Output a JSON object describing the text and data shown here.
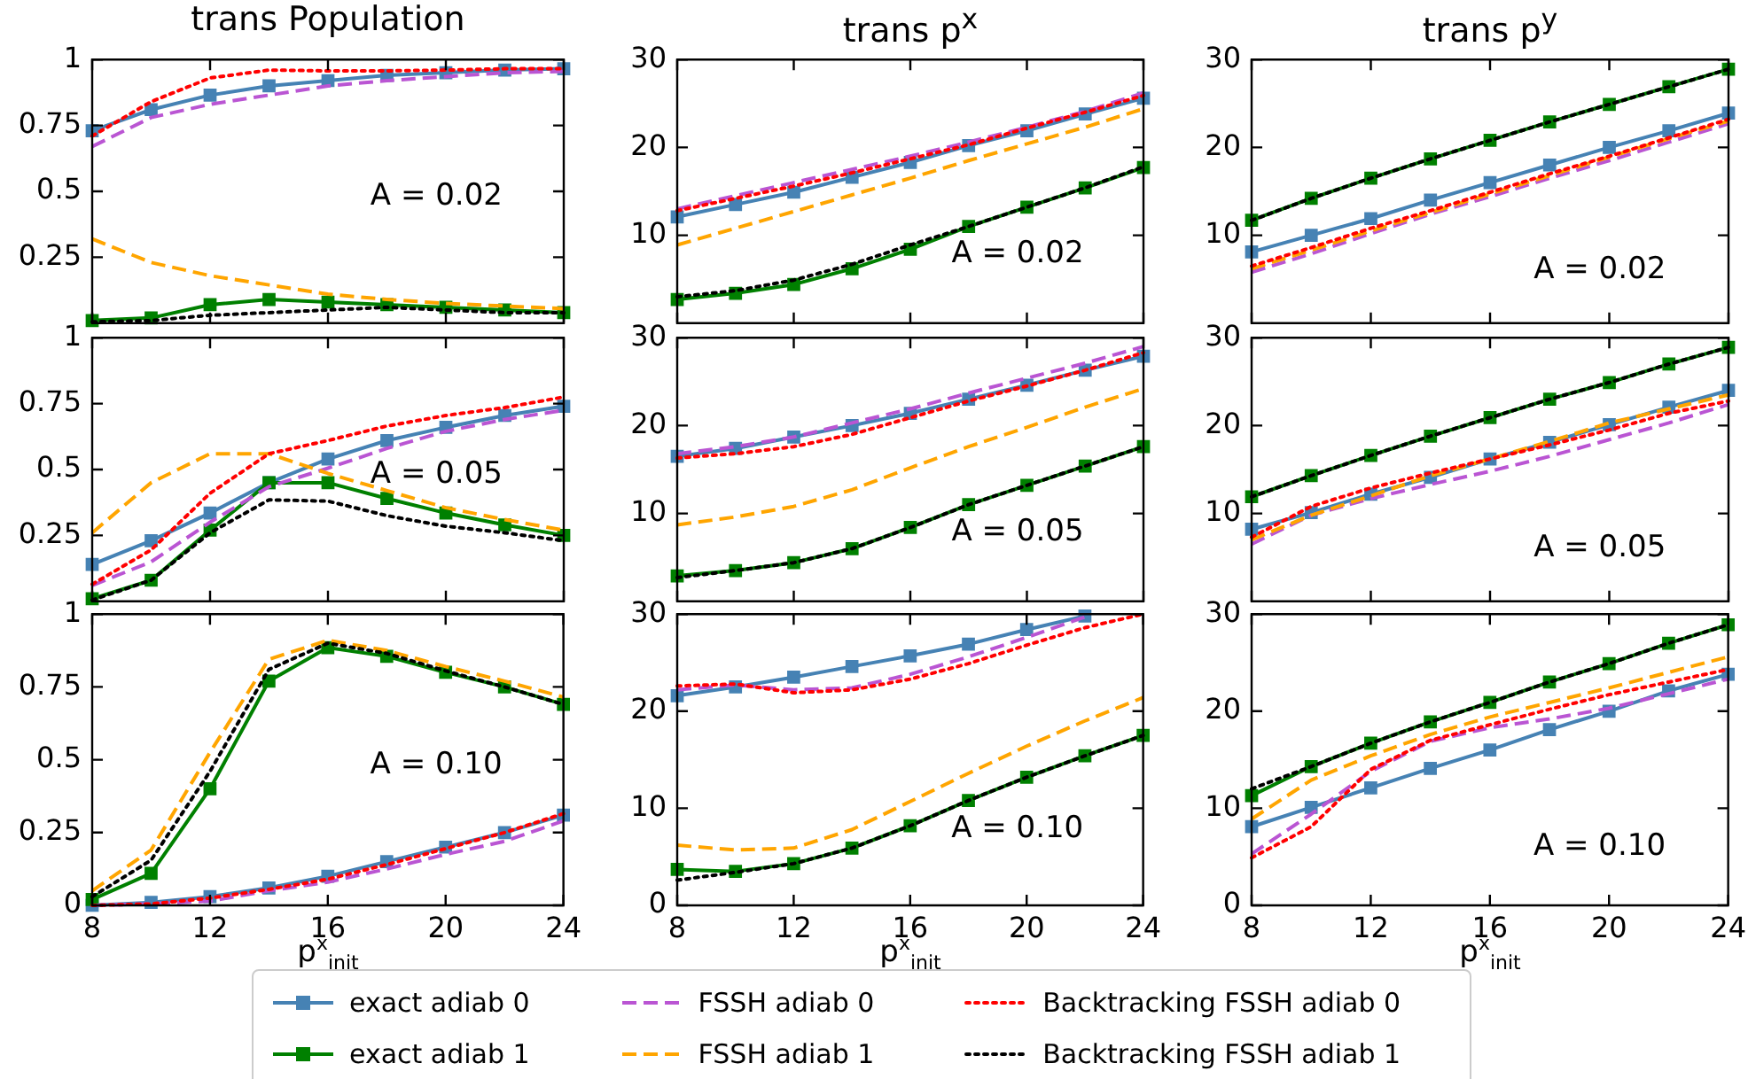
{
  "chart_data": [
    {
      "type": "line",
      "title": "trans Population",
      "x": [
        8,
        10,
        12,
        14,
        16,
        18,
        20,
        22,
        24
      ],
      "xlim": [
        8,
        24
      ],
      "xticks": [
        8,
        12,
        16,
        20,
        24
      ],
      "ylim": [
        0,
        1
      ],
      "yticks": [
        0.25,
        0.5,
        0.75,
        1
      ],
      "tick_labels": "y",
      "annotations": [
        "A = 0.02"
      ],
      "series": [
        {
          "color": "#4682b4",
          "marker": "square",
          "line_style": "solid",
          "values": [
            0.73,
            0.81,
            0.865,
            0.9,
            0.92,
            0.94,
            0.95,
            0.96,
            0.965
          ]
        },
        {
          "color": "#008000",
          "marker": "square",
          "line_style": "solid",
          "values": [
            0.01,
            0.02,
            0.07,
            0.09,
            0.08,
            0.07,
            0.06,
            0.05,
            0.04
          ]
        },
        {
          "color": "#ba55d3",
          "marker": "none",
          "line_style": "dashed",
          "values": [
            0.67,
            0.78,
            0.83,
            0.865,
            0.9,
            0.92,
            0.935,
            0.95,
            0.955
          ]
        },
        {
          "color": "#ffa500",
          "marker": "none",
          "line_style": "dashed",
          "values": [
            0.32,
            0.23,
            0.18,
            0.145,
            0.11,
            0.09,
            0.075,
            0.065,
            0.055
          ]
        },
        {
          "color": "#ff0000",
          "marker": "none",
          "line_style": "dotted",
          "values": [
            0.71,
            0.84,
            0.93,
            0.96,
            0.957,
            0.957,
            0.96,
            0.965,
            0.965
          ]
        },
        {
          "color": "#000000",
          "marker": "none",
          "line_style": "dotted",
          "values": [
            0.005,
            0.01,
            0.03,
            0.04,
            0.05,
            0.06,
            0.05,
            0.04,
            0.04
          ]
        }
      ]
    },
    {
      "type": "line",
      "title": "trans p$^{x}$",
      "x": [
        8,
        10,
        12,
        14,
        16,
        18,
        20,
        22,
        24
      ],
      "xlim": [
        8,
        24
      ],
      "xticks": [
        8,
        12,
        16,
        20,
        24
      ],
      "ylim": [
        0,
        30
      ],
      "yticks": [
        10,
        20,
        30
      ],
      "tick_labels": "y",
      "annotations": [
        "A = 0.02"
      ],
      "series": [
        {
          "color": "#4682b4",
          "marker": "square",
          "line_style": "solid",
          "values": [
            12.1,
            13.5,
            14.9,
            16.6,
            18.3,
            20.2,
            21.9,
            23.8,
            25.6
          ]
        },
        {
          "color": "#008000",
          "marker": "square",
          "line_style": "solid",
          "values": [
            2.7,
            3.4,
            4.4,
            6.2,
            8.4,
            11.0,
            13.2,
            15.4,
            17.7
          ]
        },
        {
          "color": "#ba55d3",
          "marker": "none",
          "line_style": "dashed",
          "values": [
            13.0,
            14.5,
            16.0,
            17.5,
            19.0,
            20.6,
            22.3,
            24.1,
            26.2
          ]
        },
        {
          "color": "#ffa500",
          "marker": "none",
          "line_style": "dashed",
          "values": [
            8.9,
            10.8,
            12.7,
            14.6,
            16.5,
            18.5,
            20.4,
            22.3,
            24.4
          ]
        },
        {
          "color": "#ff0000",
          "marker": "none",
          "line_style": "dotted",
          "values": [
            12.8,
            14.2,
            15.6,
            17.1,
            18.7,
            20.3,
            22.2,
            24.0,
            25.9
          ]
        },
        {
          "color": "#000000",
          "marker": "none",
          "line_style": "dotted",
          "values": [
            3.0,
            3.7,
            4.9,
            6.7,
            8.9,
            11.0,
            13.2,
            15.4,
            17.8
          ]
        }
      ]
    },
    {
      "type": "line",
      "title": "trans p$^{y}$",
      "x": [
        8,
        10,
        12,
        14,
        16,
        18,
        20,
        22,
        24
      ],
      "xlim": [
        8,
        24
      ],
      "xticks": [
        8,
        12,
        16,
        20,
        24
      ],
      "ylim": [
        0,
        30
      ],
      "yticks": [
        10,
        20,
        30
      ],
      "tick_labels": "y",
      "annotations": [
        "A = 0.02"
      ],
      "series": [
        {
          "color": "#4682b4",
          "marker": "square",
          "line_style": "solid",
          "values": [
            8.1,
            10.0,
            11.9,
            14.0,
            16.0,
            18.0,
            20.0,
            21.9,
            23.9
          ]
        },
        {
          "color": "#008000",
          "marker": "square",
          "line_style": "solid",
          "values": [
            11.7,
            14.2,
            16.5,
            18.7,
            20.8,
            22.9,
            24.9,
            26.9,
            28.9
          ]
        },
        {
          "color": "#ba55d3",
          "marker": "none",
          "line_style": "dashed",
          "values": [
            5.8,
            7.9,
            10.2,
            12.4,
            14.4,
            16.5,
            18.5,
            20.6,
            22.7
          ]
        },
        {
          "color": "#ffa500",
          "marker": "none",
          "line_style": "dashed",
          "values": [
            6.2,
            8.3,
            10.5,
            12.6,
            14.7,
            16.8,
            18.9,
            21.0,
            23.0
          ]
        },
        {
          "color": "#ff0000",
          "marker": "none",
          "line_style": "dotted",
          "values": [
            6.5,
            8.6,
            10.8,
            12.8,
            14.9,
            17.0,
            19.0,
            21.1,
            23.2
          ]
        },
        {
          "color": "#000000",
          "marker": "none",
          "line_style": "dotted",
          "values": [
            11.7,
            14.2,
            16.5,
            18.7,
            20.8,
            22.9,
            24.9,
            26.9,
            28.9
          ]
        }
      ]
    },
    {
      "type": "line",
      "x": [
        8,
        10,
        12,
        14,
        16,
        18,
        20,
        22,
        24
      ],
      "xlim": [
        8,
        24
      ],
      "xticks": [
        8,
        12,
        16,
        20,
        24
      ],
      "ylim": [
        0,
        1
      ],
      "yticks": [
        0.25,
        0.5,
        0.75,
        1
      ],
      "tick_labels": "y",
      "annotations": [
        "A = 0.05"
      ],
      "series": [
        {
          "color": "#4682b4",
          "marker": "square",
          "line_style": "solid",
          "values": [
            0.14,
            0.23,
            0.335,
            0.45,
            0.54,
            0.61,
            0.66,
            0.705,
            0.74
          ]
        },
        {
          "color": "#008000",
          "marker": "square",
          "line_style": "solid",
          "values": [
            0.01,
            0.08,
            0.27,
            0.45,
            0.45,
            0.39,
            0.335,
            0.29,
            0.25
          ]
        },
        {
          "color": "#ba55d3",
          "marker": "none",
          "line_style": "dashed",
          "values": [
            0.06,
            0.15,
            0.3,
            0.435,
            0.505,
            0.58,
            0.645,
            0.69,
            0.725
          ]
        },
        {
          "color": "#ffa500",
          "marker": "none",
          "line_style": "dashed",
          "values": [
            0.26,
            0.45,
            0.56,
            0.56,
            0.485,
            0.42,
            0.355,
            0.31,
            0.27
          ]
        },
        {
          "color": "#ff0000",
          "marker": "none",
          "line_style": "dotted",
          "values": [
            0.065,
            0.195,
            0.41,
            0.56,
            0.61,
            0.665,
            0.705,
            0.735,
            0.775
          ]
        },
        {
          "color": "#000000",
          "marker": "none",
          "line_style": "dotted",
          "values": [
            0.005,
            0.08,
            0.26,
            0.385,
            0.38,
            0.325,
            0.285,
            0.26,
            0.23
          ]
        }
      ]
    },
    {
      "type": "line",
      "x": [
        8,
        10,
        12,
        14,
        16,
        18,
        20,
        22,
        24
      ],
      "xlim": [
        8,
        24
      ],
      "xticks": [
        8,
        12,
        16,
        20,
        24
      ],
      "ylim": [
        0,
        30
      ],
      "yticks": [
        10,
        20,
        30
      ],
      "tick_labels": "y",
      "annotations": [
        "A = 0.05"
      ],
      "series": [
        {
          "color": "#4682b4",
          "marker": "square",
          "line_style": "solid",
          "values": [
            16.5,
            17.4,
            18.7,
            20.0,
            21.4,
            23.0,
            24.6,
            26.3,
            27.9
          ]
        },
        {
          "color": "#008000",
          "marker": "square",
          "line_style": "solid",
          "values": [
            2.9,
            3.5,
            4.4,
            6.0,
            8.4,
            11.0,
            13.2,
            15.4,
            17.6
          ]
        },
        {
          "color": "#ba55d3",
          "marker": "none",
          "line_style": "dashed",
          "values": [
            16.8,
            17.6,
            18.7,
            20.3,
            21.9,
            23.7,
            25.4,
            27.1,
            29.0
          ]
        },
        {
          "color": "#ffa500",
          "marker": "none",
          "line_style": "dashed",
          "values": [
            8.7,
            9.6,
            10.8,
            12.7,
            15.2,
            17.6,
            19.8,
            22.1,
            24.2
          ]
        },
        {
          "color": "#ff0000",
          "marker": "none",
          "line_style": "dotted",
          "values": [
            16.3,
            16.8,
            17.6,
            19.0,
            20.9,
            22.8,
            24.5,
            26.3,
            28.3
          ]
        },
        {
          "color": "#000000",
          "marker": "none",
          "line_style": "dotted",
          "values": [
            2.7,
            3.5,
            4.4,
            6.0,
            8.4,
            11.0,
            13.2,
            15.4,
            17.6
          ]
        }
      ]
    },
    {
      "type": "line",
      "x": [
        8,
        10,
        12,
        14,
        16,
        18,
        20,
        22,
        24
      ],
      "xlim": [
        8,
        24
      ],
      "xticks": [
        8,
        12,
        16,
        20,
        24
      ],
      "ylim": [
        0,
        30
      ],
      "yticks": [
        10,
        20,
        30
      ],
      "tick_labels": "y",
      "annotations": [
        "A = 0.05"
      ],
      "series": [
        {
          "color": "#4682b4",
          "marker": "square",
          "line_style": "solid",
          "values": [
            8.2,
            10.1,
            12.2,
            14.1,
            16.2,
            18.1,
            20.1,
            22.1,
            24.0
          ]
        },
        {
          "color": "#008000",
          "marker": "square",
          "line_style": "solid",
          "values": [
            11.9,
            14.3,
            16.6,
            18.8,
            20.9,
            23.0,
            24.9,
            27.0,
            28.9
          ]
        },
        {
          "color": "#ba55d3",
          "marker": "none",
          "line_style": "dashed",
          "values": [
            6.5,
            9.8,
            11.7,
            13.3,
            14.8,
            16.5,
            18.4,
            20.3,
            22.4
          ]
        },
        {
          "color": "#ffa500",
          "marker": "none",
          "line_style": "dashed",
          "values": [
            7.0,
            9.8,
            12.0,
            14.3,
            16.2,
            18.2,
            20.3,
            21.9,
            23.5
          ]
        },
        {
          "color": "#ff0000",
          "marker": "none",
          "line_style": "dotted",
          "values": [
            7.3,
            10.8,
            12.9,
            14.6,
            16.2,
            17.8,
            19.5,
            21.4,
            22.8
          ]
        },
        {
          "color": "#000000",
          "marker": "none",
          "line_style": "dotted",
          "values": [
            11.9,
            14.3,
            16.6,
            18.8,
            20.9,
            23.0,
            24.9,
            27.0,
            28.9
          ]
        }
      ]
    },
    {
      "type": "line",
      "xlabel": "p$^{x}$$_{init}$",
      "x": [
        8,
        10,
        12,
        14,
        16,
        18,
        20,
        22,
        24
      ],
      "xlim": [
        8,
        24
      ],
      "xticks": [
        8,
        12,
        16,
        20,
        24
      ],
      "ylim": [
        0,
        1
      ],
      "yticks": [
        0,
        0.25,
        0.5,
        0.75,
        1
      ],
      "annotations": [
        "A = 0.10"
      ],
      "series": [
        {
          "color": "#4682b4",
          "marker": "square",
          "line_style": "solid",
          "values": [
            0.0,
            0.01,
            0.03,
            0.06,
            0.1,
            0.15,
            0.2,
            0.25,
            0.31
          ]
        },
        {
          "color": "#008000",
          "marker": "square",
          "line_style": "solid",
          "values": [
            0.02,
            0.11,
            0.4,
            0.77,
            0.885,
            0.855,
            0.8,
            0.75,
            0.69
          ]
        },
        {
          "color": "#ba55d3",
          "marker": "none",
          "line_style": "dashed",
          "values": [
            0.0,
            0.005,
            0.015,
            0.05,
            0.08,
            0.125,
            0.175,
            0.22,
            0.29
          ]
        },
        {
          "color": "#ffa500",
          "marker": "none",
          "line_style": "dashed",
          "values": [
            0.05,
            0.19,
            0.525,
            0.845,
            0.91,
            0.875,
            0.82,
            0.77,
            0.715
          ]
        },
        {
          "color": "#ff0000",
          "marker": "none",
          "line_style": "dotted",
          "values": [
            0.0,
            0.005,
            0.025,
            0.055,
            0.09,
            0.14,
            0.195,
            0.25,
            0.315
          ]
        },
        {
          "color": "#000000",
          "marker": "none",
          "line_style": "dotted",
          "values": [
            0.03,
            0.155,
            0.46,
            0.81,
            0.9,
            0.865,
            0.805,
            0.75,
            0.69
          ]
        }
      ]
    },
    {
      "type": "line",
      "xlabel": "p$^{x}$$_{init}$",
      "legend": "bottom",
      "x": [
        8,
        10,
        12,
        14,
        16,
        18,
        20,
        22,
        24
      ],
      "xlim": [
        8,
        24
      ],
      "xticks": [
        8,
        12,
        16,
        20,
        24
      ],
      "ylim": [
        0,
        30
      ],
      "yticks": [
        0,
        10,
        20,
        30
      ],
      "annotations": [
        "A = 0.10"
      ],
      "series": [
        {
          "name": "exact adiab 0",
          "color": "#4682b4",
          "marker": "square",
          "line_style": "solid",
          "values": [
            21.6,
            22.5,
            23.5,
            24.6,
            25.7,
            26.9,
            28.4,
            29.8,
            null
          ]
        },
        {
          "name": "exact adiab 1",
          "color": "#008000",
          "marker": "square",
          "line_style": "solid",
          "values": [
            3.7,
            3.5,
            4.3,
            5.9,
            8.2,
            10.8,
            13.2,
            15.4,
            17.5
          ]
        },
        {
          "name": "FSSH adiab 0",
          "color": "#ba55d3",
          "marker": "none",
          "line_style": "dashed",
          "values": [
            22.2,
            22.7,
            22.2,
            22.4,
            23.8,
            25.6,
            27.6,
            29.7,
            null
          ]
        },
        {
          "name": "FSSH adiab 1",
          "color": "#ffa500",
          "marker": "none",
          "line_style": "dashed",
          "values": [
            6.2,
            5.7,
            5.9,
            7.8,
            10.7,
            13.6,
            16.4,
            19.0,
            21.4
          ]
        },
        {
          "name": "Backtracking FSSH adiab 0",
          "color": "#ff0000",
          "marker": "none",
          "line_style": "dotted",
          "values": [
            22.6,
            22.8,
            21.9,
            22.2,
            23.3,
            24.9,
            26.8,
            28.6,
            30.0
          ]
        },
        {
          "name": "Backtracking FSSH adiab 1",
          "color": "#000000",
          "marker": "none",
          "line_style": "dotted",
          "values": [
            2.6,
            3.4,
            4.3,
            5.9,
            8.2,
            10.8,
            13.2,
            15.4,
            17.5
          ]
        }
      ]
    },
    {
      "type": "line",
      "xlabel": "p$^{x}$$_{init}$",
      "x": [
        8,
        10,
        12,
        14,
        16,
        18,
        20,
        22,
        24
      ],
      "xlim": [
        8,
        24
      ],
      "xticks": [
        8,
        12,
        16,
        20,
        24
      ],
      "ylim": [
        0,
        30
      ],
      "yticks": [
        0,
        10,
        20,
        30
      ],
      "annotations": [
        "A = 0.10"
      ],
      "series": [
        {
          "color": "#4682b4",
          "marker": "square",
          "line_style": "solid",
          "values": [
            8.1,
            10.1,
            12.1,
            14.1,
            16.0,
            18.1,
            20.0,
            22.1,
            23.8
          ]
        },
        {
          "color": "#008000",
          "marker": "square",
          "line_style": "solid",
          "values": [
            11.3,
            14.3,
            16.7,
            18.9,
            20.9,
            23.0,
            24.9,
            27.0,
            28.9
          ]
        },
        {
          "color": "#ba55d3",
          "marker": "none",
          "line_style": "dashed",
          "values": [
            5.3,
            9.4,
            13.8,
            16.9,
            18.3,
            19.2,
            20.3,
            21.8,
            23.3
          ]
        },
        {
          "color": "#ffa500",
          "marker": "none",
          "line_style": "dashed",
          "values": [
            8.9,
            12.9,
            15.4,
            17.6,
            19.4,
            20.9,
            22.4,
            24.0,
            25.6
          ]
        },
        {
          "color": "#ff0000",
          "marker": "none",
          "line_style": "dotted",
          "values": [
            4.9,
            8.1,
            14.0,
            17.0,
            18.6,
            20.2,
            21.7,
            23.0,
            24.3
          ]
        },
        {
          "color": "#000000",
          "marker": "none",
          "line_style": "dotted",
          "values": [
            12.0,
            14.3,
            16.7,
            18.9,
            20.9,
            23.0,
            24.9,
            27.0,
            28.9
          ]
        }
      ]
    }
  ]
}
